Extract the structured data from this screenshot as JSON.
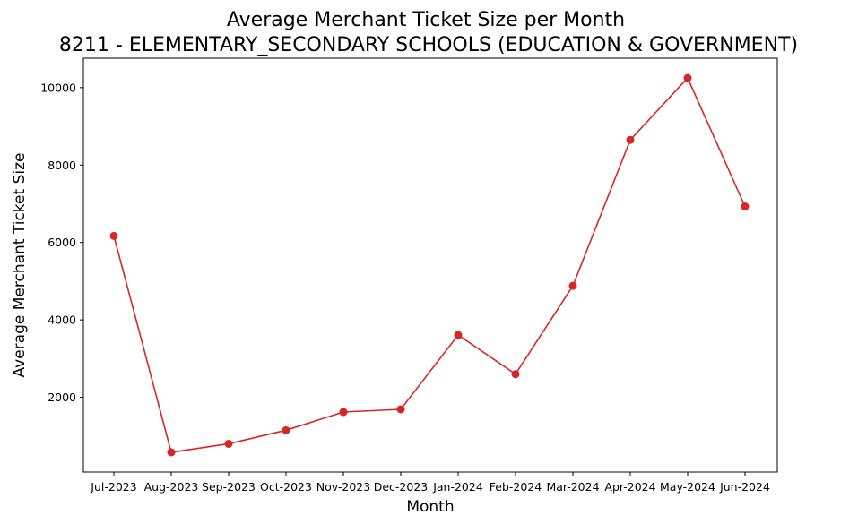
{
  "chart_data": {
    "type": "line",
    "title": "Average Merchant Ticket Size per Month",
    "subtitle": "8211 - ELEMENTARY_SECONDARY SCHOOLS (EDUCATION & GOVERNMENT)",
    "xlabel": "Month",
    "ylabel": "Average Merchant Ticket Size",
    "categories": [
      "Jul-2023",
      "Aug-2023",
      "Sep-2023",
      "Oct-2023",
      "Nov-2023",
      "Dec-2023",
      "Jan-2024",
      "Feb-2024",
      "Mar-2024",
      "Apr-2024",
      "May-2024",
      "Jun-2024"
    ],
    "series": [
      {
        "values": [
          6170,
          580,
          800,
          1150,
          1620,
          1690,
          3610,
          2600,
          4880,
          8650,
          10250,
          6930
        ],
        "color": "#d62728",
        "marker": "circle"
      }
    ],
    "yticks": [
      2000,
      4000,
      6000,
      8000,
      10000
    ],
    "ylim": [
      70,
      10760
    ],
    "grid": false,
    "legend": "none"
  }
}
